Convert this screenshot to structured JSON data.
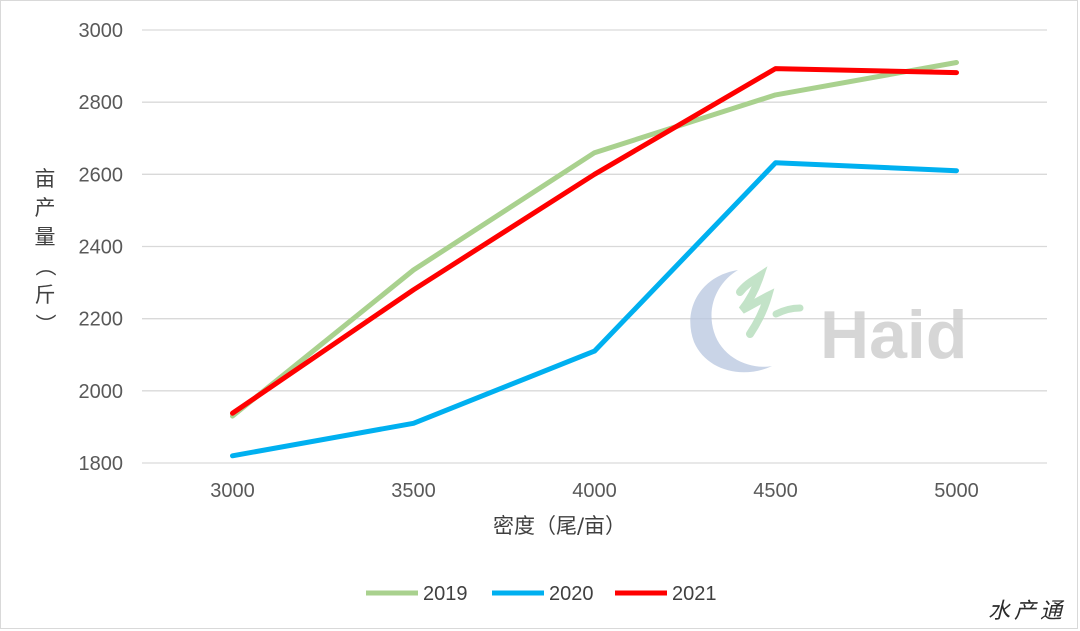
{
  "chart_data": {
    "type": "line",
    "title": "",
    "xlabel": "密度（尾/亩）",
    "ylabel": "亩产量（斤）",
    "categories": [
      "3000",
      "3500",
      "4000",
      "4500",
      "5000"
    ],
    "ylim": [
      1800,
      3000
    ],
    "yticks": [
      1800,
      2000,
      2200,
      2400,
      2600,
      2800,
      3000
    ],
    "grid": true,
    "legend_position": "bottom",
    "series": [
      {
        "name": "2019",
        "color": "#a9d18e",
        "values": [
          1930,
          2335,
          2660,
          2820,
          2910
        ]
      },
      {
        "name": "2020",
        "color": "#00b0f0",
        "values": [
          1820,
          1910,
          2110,
          2632,
          2610
        ]
      },
      {
        "name": "2021",
        "color": "#ff0000",
        "values": [
          1938,
          2280,
          2600,
          2893,
          2882
        ]
      }
    ]
  },
  "watermark": {
    "text": "Haid",
    "icon": "haid-logo-icon"
  },
  "corner_logo": {
    "text": "水产通"
  }
}
